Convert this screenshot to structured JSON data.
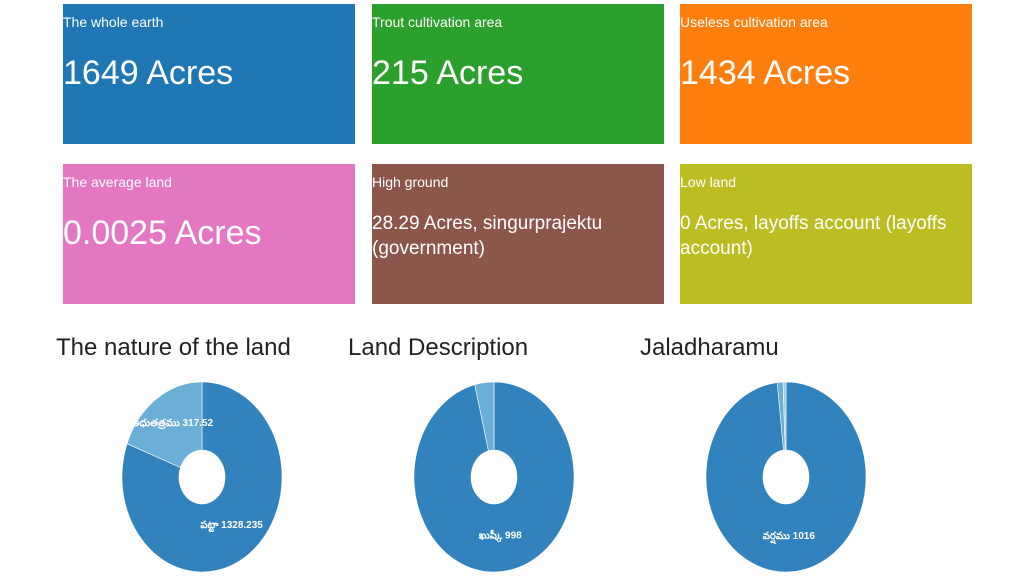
{
  "tiles": [
    {
      "label": "The whole earth",
      "value": "1649 Acres",
      "color": "#1f77b4"
    },
    {
      "label": "Trout cultivation area",
      "value": "215 Acres",
      "color": "#2ca02c"
    },
    {
      "label": "Useless cultivation area",
      "value": "1434 Acres",
      "color": "#ff7f0e"
    },
    {
      "label": "The average land",
      "value": "0.0025 Acres",
      "color": "#e377c2"
    },
    {
      "label": "High ground",
      "value": "28.29 Acres, singurprajektu (government)",
      "color": "#8c564b"
    },
    {
      "label": "Low land",
      "value": "0 Acres, layoffs account (layoffs account)",
      "color": "#bcbd22"
    }
  ],
  "chart_data": [
    {
      "type": "pie",
      "title": "The nature of the land",
      "donut": true,
      "slices": [
        {
          "label": "పట్టా 1328.235",
          "value": 1328.235,
          "color": "#3182bd"
        },
        {
          "label": "అధుతత్రము 317.52",
          "value": 317.52,
          "color": "#6baed6"
        }
      ]
    },
    {
      "type": "pie",
      "title": "Land Description",
      "donut": true,
      "slices": [
        {
          "label": "ఖుష్కీ 998",
          "value": 998,
          "color": "#3182bd"
        },
        {
          "label": "",
          "value": 40,
          "color": "#6baed6"
        }
      ]
    },
    {
      "type": "pie",
      "title": "Jaladharamu",
      "donut": true,
      "slices": [
        {
          "label": "వర్షము 1016",
          "value": 1016,
          "color": "#3182bd"
        },
        {
          "label": "",
          "value": 12,
          "color": "#6baed6"
        },
        {
          "label": "",
          "value": 6,
          "color": "#9ecae1"
        }
      ]
    }
  ]
}
